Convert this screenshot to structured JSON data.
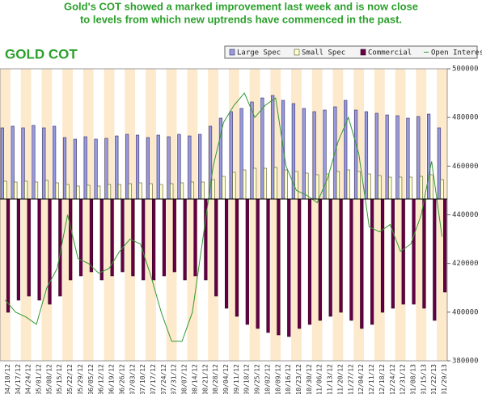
{
  "chart_data": {
    "type": "bar",
    "headline": [
      "Gold's COT showed a marked improvement last week and is now close",
      "to levels from which new uptrends have commenced in the past."
    ],
    "title": "GOLD COT",
    "categories": [
      "04/10/12",
      "04/17/12",
      "04/24/12",
      "05/01/12",
      "05/08/12",
      "05/15/12",
      "05/22/12",
      "05/29/12",
      "06/05/12",
      "06/12/12",
      "06/19/12",
      "06/26/12",
      "07/03/12",
      "07/10/12",
      "07/17/12",
      "07/24/12",
      "07/31/12",
      "08/07/12",
      "08/14/12",
      "08/21/12",
      "08/28/12",
      "09/04/12",
      "09/11/12",
      "09/18/12",
      "09/25/12",
      "10/02/12",
      "10/09/12",
      "10/16/12",
      "10/23/12",
      "10/30/12",
      "11/06/12",
      "11/13/12",
      "11/20/12",
      "11/27/12",
      "12/04/12",
      "12/11/12",
      "12/18/12",
      "12/24/12",
      "12/31/12",
      "01/08/13",
      "01/15/13",
      "01/22/13",
      "01/29/13"
    ],
    "ylim": [
      -200000,
      161000
    ],
    "y2lim": [
      380000,
      500000
    ],
    "y2ticks": [
      380000,
      400000,
      420000,
      440000,
      460000,
      480000,
      500000
    ],
    "legend": "top-right",
    "series": [
      {
        "name": "Large Spec",
        "color": "#9999dd",
        "values": [
          88000,
          90000,
          88000,
          91000,
          88000,
          90000,
          76000,
          74000,
          77000,
          74000,
          75000,
          78000,
          80000,
          79000,
          76000,
          79000,
          77000,
          80000,
          78000,
          80000,
          90000,
          100000,
          108000,
          112000,
          120000,
          125000,
          128000,
          122000,
          118000,
          112000,
          108000,
          110000,
          114000,
          122000,
          110000,
          108000,
          106000,
          104000,
          103000,
          100000,
          102000,
          105000,
          88000
        ]
      },
      {
        "name": "Small Spec",
        "color": "#ffffcc",
        "values": [
          22000,
          21000,
          22000,
          21000,
          23000,
          20000,
          18000,
          16000,
          17000,
          16000,
          18000,
          18000,
          19000,
          20000,
          19000,
          18000,
          19000,
          20000,
          21000,
          21000,
          24000,
          28000,
          33000,
          36000,
          38000,
          38000,
          39000,
          36000,
          34000,
          32000,
          30000,
          31000,
          34000,
          36000,
          34000,
          31000,
          29000,
          27000,
          27000,
          27000,
          28000,
          30000,
          24000
        ]
      },
      {
        "name": "Commercial",
        "color": "#660044",
        "values": [
          -140000,
          -125000,
          -120000,
          -125000,
          -130000,
          -120000,
          -100000,
          -95000,
          -90000,
          -100000,
          -95000,
          -90000,
          -95000,
          -100000,
          -100000,
          -95000,
          -90000,
          -100000,
          -95000,
          -100000,
          -120000,
          -135000,
          -145000,
          -155000,
          -160000,
          -165000,
          -168000,
          -170000,
          -160000,
          -155000,
          -150000,
          -145000,
          -140000,
          -150000,
          -160000,
          -155000,
          -140000,
          -135000,
          -130000,
          -130000,
          -135000,
          -150000,
          -115000
        ]
      },
      {
        "name": "Open Interest",
        "color": "#339933",
        "type": "line",
        "axis": "y2",
        "values": [
          405000,
          400000,
          398000,
          395000,
          410000,
          418000,
          440000,
          422000,
          420000,
          416000,
          418000,
          425000,
          430000,
          428000,
          415000,
          400000,
          388000,
          388000,
          400000,
          430000,
          460000,
          478000,
          485000,
          490000,
          480000,
          485000,
          488000,
          460000,
          450000,
          448000,
          445000,
          455000,
          470000,
          480000,
          465000,
          435000,
          433000,
          436000,
          425000,
          428000,
          440000,
          462000,
          431000
        ]
      }
    ]
  }
}
